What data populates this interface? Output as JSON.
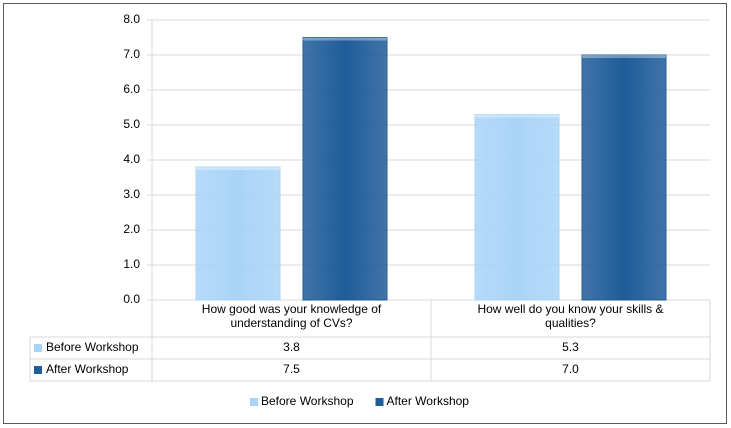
{
  "chart_data": {
    "type": "bar",
    "categories": [
      "How good was your knowledge of understanding of CVs?",
      "How well do you know your skills & qualities?"
    ],
    "series": [
      {
        "name": "Before Workshop",
        "color": "#a9d4f7",
        "values": [
          3.8,
          5.3
        ],
        "value_labels": [
          "3.8",
          "5.3"
        ]
      },
      {
        "name": "After Workshop",
        "color": "#1f5c99",
        "values": [
          7.5,
          7.0
        ],
        "value_labels": [
          "7.5",
          "7.0"
        ]
      }
    ],
    "ylim": [
      0,
      8
    ],
    "yticks": [
      {
        "value": 0,
        "label": "0.0"
      },
      {
        "value": 1,
        "label": "1.0"
      },
      {
        "value": 2,
        "label": "2.0"
      },
      {
        "value": 3,
        "label": "3.0"
      },
      {
        "value": 4,
        "label": "4.0"
      },
      {
        "value": 5,
        "label": "5.0"
      },
      {
        "value": 6,
        "label": "6.0"
      },
      {
        "value": 7,
        "label": "7.0"
      },
      {
        "value": 8,
        "label": "8.0"
      }
    ],
    "grid": true,
    "legend": "bottom",
    "data_table": true
  }
}
